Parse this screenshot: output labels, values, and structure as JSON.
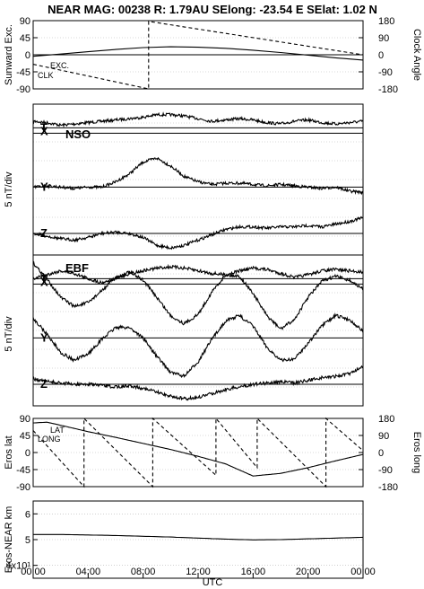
{
  "header": {
    "title": "NEAR MAG: 00238  R: 1.79AU  SElong:  -23.54 E  SElat:    1.02 N"
  },
  "chart_data": [
    {
      "type": "line",
      "panel": "sunward-clock",
      "ylabel": "Sunward Exc.",
      "ylabel_right": "Clock Angle",
      "ylim": [
        -90,
        90
      ],
      "ylim_right": [
        -180,
        180
      ],
      "yticks": [
        "90",
        "45",
        "0",
        "-45",
        "-90"
      ],
      "yticks_right": [
        "180",
        "90",
        "0",
        "-90",
        "-180"
      ],
      "series": [
        {
          "name": "EXC.",
          "style": "solid",
          "x": [
            0,
            2,
            4,
            6,
            8,
            10,
            12,
            14,
            16,
            18,
            20,
            22,
            24
          ],
          "values": [
            -4,
            2,
            8,
            14,
            19,
            21,
            20,
            17,
            12,
            6,
            -1,
            -8,
            -14
          ]
        },
        {
          "name": "CLK",
          "style": "dashed",
          "axis": "right",
          "x": [
            0,
            8.4,
            8.4,
            24
          ],
          "values": [
            -50,
            -180,
            176,
            0
          ]
        }
      ]
    },
    {
      "type": "line",
      "panel": "NSO",
      "label": "NSO",
      "ylabel": "5 nT/div",
      "components": [
        {
          "name": "T",
          "baseline_div": 1.1,
          "x": [
            0,
            1,
            2,
            3,
            4,
            5,
            6,
            7,
            8,
            9,
            10,
            11,
            12,
            13,
            14,
            15,
            16,
            17,
            18,
            19,
            20,
            21,
            22,
            23,
            24
          ],
          "values": [
            0.5,
            0.4,
            0.2,
            0.3,
            0.4,
            0.5,
            0.6,
            0.7,
            0.8,
            1,
            1,
            0.9,
            0.7,
            0.5,
            0.6,
            0.7,
            0.6,
            0.4,
            0.3,
            0.5,
            0.6,
            0.4,
            0.3,
            0.4,
            0.5
          ]
        },
        {
          "name": "X",
          "baseline_div": 1.35,
          "x": [],
          "values": []
        },
        {
          "name": "Y",
          "baseline_div": 3.85,
          "x": [
            0,
            1,
            2,
            3,
            4,
            5,
            6,
            7,
            8,
            9,
            10,
            11,
            12,
            13,
            14,
            15,
            16,
            17,
            18,
            19,
            20,
            21,
            22,
            23,
            24
          ],
          "values": [
            0,
            0.1,
            0,
            -0.1,
            0,
            0,
            0.4,
            1,
            1.9,
            2.2,
            1.6,
            0.8,
            0.4,
            0.2,
            0.3,
            0.3,
            0.2,
            0.1,
            0.2,
            0.1,
            0,
            -0.1,
            0,
            -0.3,
            -0.4
          ]
        },
        {
          "name": "Z",
          "baseline_div": 6.0,
          "x": [
            0,
            1,
            2,
            3,
            4,
            5,
            6,
            7,
            8,
            9,
            10,
            11,
            12,
            13,
            14,
            15,
            16,
            17,
            18,
            19,
            20,
            21,
            22,
            23,
            24
          ],
          "values": [
            0,
            -0.2,
            -0.4,
            -0.5,
            -0.3,
            0,
            0.1,
            0,
            -0.3,
            -0.9,
            -1.1,
            -0.9,
            -0.5,
            -0.1,
            0.3,
            0.5,
            0.5,
            0.4,
            0.5,
            0.5,
            0.6,
            0.5,
            0.7,
            0.9,
            1.2
          ]
        }
      ],
      "grid": true
    },
    {
      "type": "line",
      "panel": "EBF",
      "label": "EBF",
      "ylabel": "5 nT/div",
      "components": [
        {
          "name": "T",
          "baseline_div": 1.1,
          "x": [
            0,
            1,
            2,
            3,
            4,
            5,
            6,
            7,
            8,
            9,
            10,
            11,
            12,
            13,
            14,
            15,
            16,
            17,
            18,
            19,
            20,
            21,
            22,
            23,
            24
          ],
          "values": [
            0,
            0.3,
            0.6,
            0.4,
            0,
            -0.3,
            0,
            0.4,
            0.6,
            0.8,
            0.9,
            0.8,
            0.6,
            0.4,
            0.3,
            0.6,
            0.8,
            0.7,
            0.4,
            0.1,
            0.3,
            0.6,
            0.7,
            0.6,
            0.5
          ]
        },
        {
          "name": "X",
          "baseline_div": 1.35,
          "x": [
            0,
            1,
            2,
            3,
            4,
            5,
            6,
            7,
            8,
            9,
            10,
            11,
            12,
            13,
            14,
            15,
            16,
            17,
            18,
            19,
            20,
            21,
            22,
            23,
            24
          ],
          "values": [
            1.6,
            0.4,
            -1,
            -1.7,
            -1.4,
            -0.5,
            0.5,
            0.9,
            0.3,
            -1,
            -2.4,
            -3,
            -2.3,
            -0.6,
            0.7,
            0.6,
            -0.7,
            -2.4,
            -3.4,
            -2.7,
            -1,
            0.2,
            0.6,
            0.3,
            -0.4
          ]
        },
        {
          "name": "Y",
          "baseline_div": 3.85,
          "x": [
            0,
            1,
            2,
            3,
            4,
            5,
            6,
            7,
            8,
            9,
            10,
            11,
            12,
            13,
            14,
            15,
            16,
            17,
            18,
            19,
            20,
            21,
            22,
            23,
            24
          ],
          "values": [
            1.5,
            0.3,
            -1.1,
            -1.7,
            -1.2,
            -0.1,
            0.8,
            0.8,
            0,
            -1.4,
            -2.6,
            -2.9,
            -1.8,
            -0.1,
            1.3,
            1.7,
            0.9,
            -0.7,
            -1.7,
            -1.6,
            -0.4,
            0.9,
            1.7,
            1.4,
            0.5
          ]
        },
        {
          "name": "Z",
          "baseline_div": 6.0,
          "x": [
            0,
            1,
            2,
            3,
            4,
            5,
            6,
            7,
            8,
            9,
            10,
            11,
            12,
            13,
            14,
            15,
            16,
            17,
            18,
            19,
            20,
            21,
            22,
            23,
            24
          ],
          "values": [
            0.4,
            0.2,
            0.1,
            0,
            0,
            -0.1,
            -0.2,
            -0.1,
            -0.3,
            -0.6,
            -0.9,
            -1.1,
            -1,
            -0.7,
            -0.4,
            -0.2,
            0,
            0.1,
            0.2,
            0.1,
            0.3,
            0.5,
            0.6,
            0.8,
            1.4
          ]
        }
      ],
      "grid": true
    },
    {
      "type": "line",
      "panel": "eros-lat-long",
      "ylabel": "Eros lat",
      "ylabel_right": "Eros long",
      "ylim": [
        -90,
        90
      ],
      "ylim_right": [
        -180,
        180
      ],
      "yticks": [
        "90",
        "45",
        "0",
        "-45",
        "-90"
      ],
      "yticks_right": [
        "180",
        "90",
        "0",
        "-90",
        "-180"
      ],
      "series": [
        {
          "name": "LAT",
          "style": "solid",
          "x": [
            0,
            1,
            2,
            4,
            6,
            8,
            10,
            12,
            14,
            16,
            18,
            20,
            22,
            24
          ],
          "values": [
            78,
            80,
            72,
            55,
            40,
            24,
            8,
            -10,
            -30,
            -62,
            -55,
            -40,
            -22,
            -5
          ]
        },
        {
          "name": "LONG",
          "style": "dashed",
          "axis": "right",
          "x": [
            0,
            3.7,
            3.7,
            8.7,
            8.7,
            13.3,
            13.3,
            16.3,
            16.3,
            21.3,
            21.3,
            24
          ],
          "values": [
            116,
            -180,
            180,
            -180,
            180,
            -120,
            180,
            -80,
            180,
            -180,
            180,
            10
          ]
        }
      ]
    },
    {
      "type": "line",
      "panel": "eros-near-range",
      "ylabel": "Eros-NEAR km",
      "ylim": [
        35,
        65
      ],
      "yticks": [
        "6",
        "5",
        "4x10¹"
      ],
      "series": [
        {
          "name": "",
          "style": "solid",
          "x": [
            0,
            2,
            4,
            6,
            8,
            10,
            12,
            14,
            16,
            18,
            20,
            22,
            24
          ],
          "values": [
            52,
            52,
            51.8,
            51.6,
            51.3,
            51,
            50.6,
            50.2,
            49.9,
            50,
            50.3,
            50.6,
            50.9
          ]
        }
      ]
    }
  ],
  "x_axis": {
    "ticks": [
      "00:00",
      "04:00",
      "08:00",
      "12:00",
      "16:00",
      "20:00",
      "00:00"
    ],
    "label": "UTC"
  },
  "series_labels": {
    "exc": "EXC.",
    "clk": "CLK",
    "lat": "LAT",
    "long": "LONG"
  }
}
